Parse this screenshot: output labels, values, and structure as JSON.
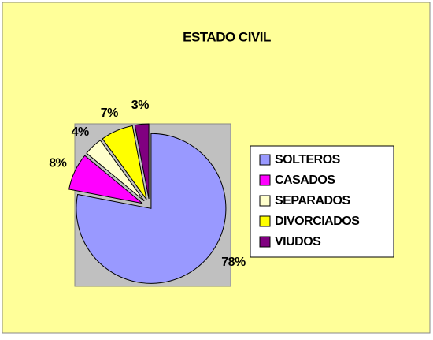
{
  "chart_data": {
    "type": "pie",
    "title": "ESTADO CIVIL",
    "categories": [
      "SOLTEROS",
      "CASADOS",
      "SEPARADOS",
      "DIVORCIADOS",
      "VIUDOS"
    ],
    "values": [
      78,
      8,
      4,
      7,
      3
    ],
    "value_labels": [
      "78%",
      "8%",
      "4%",
      "7%",
      "3%"
    ],
    "colors": [
      "#9999ff",
      "#ff00ff",
      "#ffffcc",
      "#ffff00",
      "#800080"
    ],
    "legend": "right"
  }
}
